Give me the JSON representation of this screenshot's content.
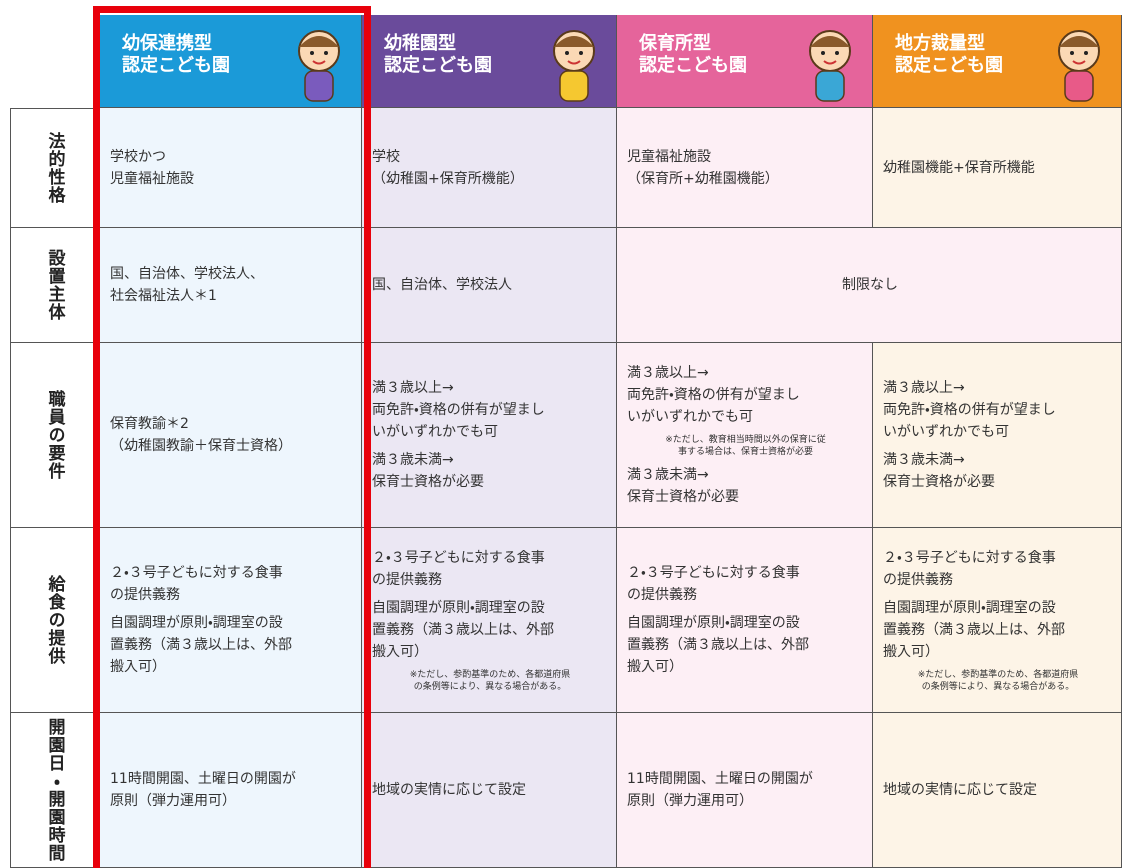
{
  "table": {
    "columns": [
      {
        "title": [
          "幼保連携型",
          "認定こども園"
        ]
      },
      {
        "title": [
          "幼稚園型",
          "認定こども園"
        ]
      },
      {
        "title": [
          "保育所型",
          "認定こども園"
        ]
      },
      {
        "title": [
          "地方裁量型",
          "認定こども園"
        ]
      }
    ],
    "rows": [
      {
        "label": "法的性格",
        "cells": [
          {
            "blocks": [
              {
                "text": [
                  "学校かつ",
                  "児童福祉施設"
                ]
              }
            ]
          },
          {
            "blocks": [
              {
                "text": [
                  "学校",
                  "（幼稚園+保育所機能）"
                ]
              }
            ]
          },
          {
            "blocks": [
              {
                "text": [
                  "児童福祉施設",
                  "（保育所+幼稚園機能）"
                ]
              }
            ]
          },
          {
            "blocks": [
              {
                "text": [
                  "幼稚園機能+保育所機能"
                ]
              }
            ]
          }
        ]
      },
      {
        "label": "設置主体",
        "cells": [
          {
            "blocks": [
              {
                "text": [
                  "国、自治体、学校法人、",
                  "社会福祉法人＊1"
                ]
              }
            ]
          },
          {
            "blocks": [
              {
                "text": [
                  "国、自治体、学校法人"
                ]
              }
            ]
          },
          {
            "blocks": [
              {
                "text": [
                  "制限なし"
                ]
              }
            ]
          }
        ]
      },
      {
        "label": "職員の要件",
        "cells": [
          {
            "blocks": [
              {
                "text": [
                  "保育教諭＊2",
                  "（幼稚園教諭＋保育士資格）"
                ]
              }
            ]
          },
          {
            "blocks": [
              {
                "text": [
                  "満３歳以上→",
                  "両免許・資格の併有が望まし",
                  "いがいずれかでも可"
                ]
              },
              {
                "text": [
                  "満３歳未満→",
                  "保育士資格が必要"
                ]
              }
            ]
          },
          {
            "blocks": [
              {
                "text": [
                  "満３歳以上→",
                  "両免許・資格の併有が望まし",
                  "いがいずれかでも可"
                ]
              },
              {
                "note": [
                  "※ただし、教育相当時間以外の保育に従",
                  "事する場合は、保育士資格が必要"
                ]
              },
              {
                "text": [
                  "満３歳未満→",
                  "保育士資格が必要"
                ]
              }
            ]
          },
          {
            "blocks": [
              {
                "text": [
                  "満３歳以上→",
                  "両免許・資格の併有が望まし",
                  "いがいずれかでも可"
                ]
              },
              {
                "text": [
                  "満３歳未満→",
                  "保育士資格が必要"
                ]
              }
            ]
          }
        ]
      },
      {
        "label": "給食の提供",
        "cells": [
          {
            "blocks": [
              {
                "text": [
                  "２・３号子どもに対する食事",
                  "の提供義務"
                ]
              },
              {
                "text": [
                  "自園調理が原則・調理室の設",
                  "置義務（満３歳以上は、外部",
                  "搬入可）"
                ]
              }
            ]
          },
          {
            "blocks": [
              {
                "text": [
                  "２・３号子どもに対する食事",
                  "の提供義務"
                ]
              },
              {
                "text": [
                  "自園調理が原則・調理室の設",
                  "置義務（満３歳以上は、外部",
                  "搬入可）"
                ]
              },
              {
                "note": [
                  "※ただし、参酌基準のため、各都道府県",
                  "の条例等により、異なる場合がある。"
                ]
              }
            ]
          },
          {
            "blocks": [
              {
                "text": [
                  "２・３号子どもに対する食事",
                  "の提供義務"
                ]
              },
              {
                "text": [
                  "自園調理が原則・調理室の設",
                  "置義務（満３歳以上は、外部",
                  "搬入可）"
                ]
              }
            ]
          },
          {
            "blocks": [
              {
                "text": [
                  "２・３号子どもに対する食事",
                  "の提供義務"
                ]
              },
              {
                "text": [
                  "自園調理が原則・調理室の設",
                  "置義務（満３歳以上は、外部",
                  "搬入可）"
                ]
              },
              {
                "note": [
                  "※ただし、参酌基準のため、各都道府県",
                  "の条例等により、異なる場合がある。"
                ]
              }
            ]
          }
        ]
      },
      {
        "label": "開園日・開園時間",
        "cells": [
          {
            "blocks": [
              {
                "text": [
                  "11時間開園、土曜日の開園が",
                  "原則（弾力運用可）"
                ]
              }
            ]
          },
          {
            "blocks": [
              {
                "text": [
                  "地域の実情に応じて設定"
                ]
              }
            ]
          },
          {
            "blocks": [
              {
                "text": [
                  "11時間開園、土曜日の開園が",
                  "原則（弾力運用可）"
                ]
              }
            ]
          },
          {
            "blocks": [
              {
                "text": [
                  "地域の実情に応じて設定"
                ]
              }
            ]
          }
        ]
      }
    ]
  }
}
